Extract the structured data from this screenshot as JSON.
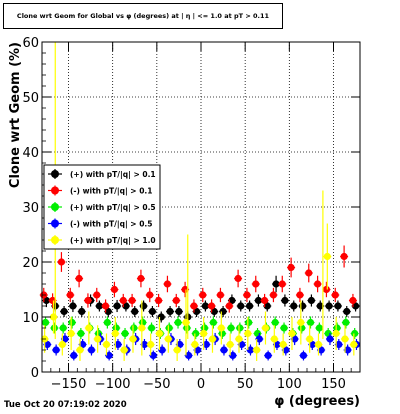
{
  "title": "Clone wrt Geom for Global vs φ (degrees) at | η | <= 1.0 at pT > 0.11",
  "timestamp": "Tue Oct 20 07:19:02 2020",
  "chart_data": {
    "type": "scatter",
    "xlabel": "φ (degrees)",
    "ylabel": "Clone wrt Geom (%)",
    "xlim": [
      -180,
      180
    ],
    "ylim": [
      0,
      60
    ],
    "x_ticks": [
      -150,
      -100,
      -50,
      0,
      50,
      100,
      150
    ],
    "y_ticks": [
      0,
      10,
      20,
      30,
      40,
      50,
      60
    ],
    "grid": true,
    "legend_position": "left, mid-height",
    "series": [
      {
        "name": "(+) with pT/|q| > 0.1",
        "color": "#000000",
        "x": [
          -175,
          -165,
          -155,
          -145,
          -135,
          -125,
          -115,
          -105,
          -95,
          -85,
          -75,
          -65,
          -55,
          -45,
          -35,
          -25,
          -15,
          -5,
          5,
          15,
          25,
          35,
          45,
          55,
          65,
          75,
          85,
          95,
          105,
          115,
          125,
          135,
          145,
          155,
          165,
          175
        ],
        "y": [
          13,
          12,
          11,
          12,
          11,
          13,
          12,
          11,
          12,
          12,
          11,
          12,
          11,
          10,
          11,
          11,
          10,
          11,
          12,
          11,
          11,
          13,
          12,
          12,
          13,
          12,
          16,
          13,
          12,
          12,
          13,
          12,
          12,
          12,
          11,
          12
        ],
        "err": [
          1.2,
          1.0,
          1.0,
          1.1,
          1.0,
          1.1,
          1.0,
          1.0,
          1.1,
          1.0,
          1.0,
          1.0,
          1.0,
          1.0,
          1.0,
          1.0,
          1.0,
          1.0,
          1.0,
          1.0,
          1.0,
          1.1,
          1.0,
          1.0,
          1.1,
          1.0,
          1.5,
          1.1,
          1.0,
          1.0,
          1.1,
          1.0,
          1.0,
          1.0,
          1.0,
          1.0
        ]
      },
      {
        "name": "(-) with pT/|q| > 0.1",
        "color": "#ff0000",
        "x": [
          -178,
          -168,
          -158,
          -148,
          -138,
          -128,
          -118,
          -108,
          -98,
          -88,
          -78,
          -68,
          -58,
          -48,
          -38,
          -28,
          -18,
          -8,
          2,
          12,
          22,
          32,
          42,
          52,
          62,
          72,
          82,
          92,
          102,
          112,
          122,
          132,
          142,
          152,
          162,
          172
        ],
        "y": [
          14,
          13,
          20,
          14,
          17,
          13,
          14,
          12,
          15,
          13,
          13,
          17,
          14,
          13,
          16,
          13,
          15,
          12,
          14,
          12,
          14,
          12,
          17,
          14,
          16,
          13,
          14,
          16,
          19,
          14,
          18,
          16,
          15,
          14,
          21,
          13
        ],
        "err": [
          1.3,
          1.3,
          1.8,
          1.3,
          1.6,
          1.3,
          1.3,
          1.2,
          1.4,
          1.2,
          1.2,
          1.6,
          1.3,
          1.2,
          1.5,
          1.2,
          1.4,
          1.2,
          1.3,
          1.2,
          1.3,
          1.2,
          1.6,
          1.3,
          1.5,
          1.2,
          1.3,
          1.5,
          1.8,
          1.3,
          1.7,
          1.5,
          1.4,
          1.3,
          2.0,
          1.2
        ]
      },
      {
        "name": "(+) with pT/|q| > 0.5",
        "color": "#00ee00",
        "x": [
          -176,
          -166,
          -156,
          -146,
          -136,
          -126,
          -116,
          -106,
          -96,
          -86,
          -76,
          -66,
          -56,
          -46,
          -36,
          -26,
          -16,
          -6,
          4,
          14,
          24,
          34,
          44,
          54,
          64,
          74,
          84,
          94,
          104,
          114,
          124,
          134,
          144,
          154,
          164,
          174
        ],
        "y": [
          9,
          8,
          8,
          9,
          7,
          8,
          7,
          9,
          8,
          7,
          8,
          9,
          8,
          7,
          8,
          9,
          8,
          7,
          8,
          9,
          7,
          8,
          8,
          9,
          7,
          8,
          9,
          8,
          7,
          8,
          9,
          8,
          7,
          8,
          9,
          7
        ],
        "err": [
          1.1,
          1.0,
          1.0,
          1.1,
          1.0,
          1.0,
          1.0,
          1.1,
          1.0,
          1.0,
          1.0,
          1.1,
          1.0,
          1.0,
          1.0,
          1.1,
          1.0,
          1.0,
          1.0,
          1.1,
          1.0,
          1.0,
          1.0,
          1.1,
          1.0,
          1.0,
          1.1,
          1.0,
          1.0,
          1.0,
          1.1,
          1.0,
          1.0,
          1.0,
          1.1,
          1.0
        ]
      },
      {
        "name": "(-) with pT/|q| > 0.5",
        "color": "#0000ff",
        "x": [
          -174,
          -164,
          -154,
          -144,
          -134,
          -124,
          -114,
          -104,
          -94,
          -84,
          -74,
          -64,
          -54,
          -44,
          -34,
          -24,
          -14,
          -4,
          6,
          16,
          26,
          36,
          46,
          56,
          66,
          76,
          86,
          96,
          106,
          116,
          126,
          136,
          146,
          156,
          166,
          176
        ],
        "y": [
          5,
          4,
          6,
          3,
          5,
          4,
          6,
          3,
          5,
          4,
          6,
          5,
          3,
          4,
          6,
          5,
          3,
          4,
          5,
          6,
          4,
          3,
          5,
          4,
          6,
          3,
          5,
          4,
          6,
          3,
          5,
          4,
          6,
          5,
          4,
          5
        ],
        "err": [
          1.0,
          1.0,
          1.1,
          0.9,
          1.0,
          1.0,
          1.1,
          0.9,
          1.0,
          1.0,
          1.1,
          1.0,
          0.9,
          1.0,
          1.1,
          1.0,
          0.9,
          1.0,
          1.0,
          1.1,
          1.0,
          0.9,
          1.0,
          1.0,
          1.1,
          0.9,
          1.0,
          1.0,
          1.1,
          0.9,
          1.0,
          1.0,
          1.1,
          1.0,
          1.0,
          1.0
        ]
      },
      {
        "name": "(+) with pT/|q| > 1.0",
        "color": "#ffff00",
        "x": [
          -177,
          -167,
          -157,
          -147,
          -137,
          -127,
          -117,
          -107,
          -97,
          -87,
          -77,
          -67,
          -57,
          -47,
          -37,
          -27,
          -17,
          -7,
          3,
          13,
          23,
          33,
          43,
          53,
          63,
          73,
          83,
          93,
          103,
          113,
          123,
          133,
          143,
          153,
          163,
          173
        ],
        "y": [
          6,
          10,
          5,
          7,
          4,
          8,
          6,
          5,
          7,
          4,
          6,
          8,
          5,
          7,
          6,
          4,
          9,
          5,
          7,
          6,
          8,
          5,
          6,
          7,
          4,
          8,
          6,
          5,
          7,
          9,
          6,
          5,
          21,
          7,
          6,
          5
        ],
        "err": [
          2.5,
          3.0,
          2.0,
          3.0,
          2.0,
          3.0,
          2.5,
          2.0,
          3.0,
          2.0,
          2.5,
          5.0,
          2.0,
          3.0,
          2.5,
          2.0,
          6.0,
          2.0,
          3.0,
          2.5,
          3.0,
          2.0,
          2.5,
          3.0,
          2.0,
          3.0,
          2.5,
          2.0,
          3.0,
          4.0,
          2.5,
          2.0,
          6.0,
          3.0,
          2.5,
          2.0
        ],
        "outliers": [
          {
            "x": -165,
            "y": 60
          },
          {
            "x": -15,
            "y": 25
          },
          {
            "x": 138,
            "y": 33
          }
        ]
      }
    ]
  }
}
